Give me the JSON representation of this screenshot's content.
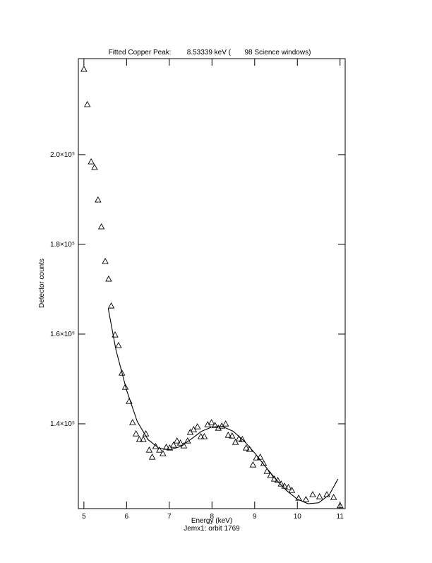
{
  "chart_data": {
    "type": "scatter",
    "title": "Fitted Copper Peak:        8.53339 keV (       98 Science windows)",
    "xlabel": "Energy (keV)",
    "subtitle": "Jemx1: orbit 1769",
    "ylabel": "Detector counts",
    "xlim": [
      4.87,
      11.12
    ],
    "ylim": [
      121100,
      221400
    ],
    "xticks": [
      5,
      6,
      7,
      8,
      9,
      10,
      11
    ],
    "yticks": [
      {
        "value": 140000,
        "label": "1.4×10⁵"
      },
      {
        "value": 160000,
        "label": "1.6×10⁵"
      },
      {
        "value": 180000,
        "label": "1.8×10⁵"
      },
      {
        "value": 200000,
        "label": "2.0×10⁵"
      }
    ],
    "series": [
      {
        "type": "scatter",
        "marker": "triangle",
        "color": "#000000",
        "x": [
          5.0,
          5.08,
          5.17,
          5.25,
          5.33,
          5.41,
          5.5,
          5.58,
          5.64,
          5.73,
          5.81,
          5.89,
          5.97,
          6.06,
          6.14,
          6.22,
          6.3,
          6.39,
          6.45,
          6.53,
          6.6,
          6.68,
          6.77,
          6.85,
          6.93,
          7.01,
          7.1,
          7.18,
          7.26,
          7.34,
          7.43,
          7.49,
          7.57,
          7.66,
          7.74,
          7.82,
          7.9,
          7.99,
          8.07,
          8.15,
          8.23,
          8.32,
          8.38,
          8.47,
          8.55,
          8.63,
          8.71,
          8.8,
          8.88,
          8.96,
          9.04,
          9.13,
          9.21,
          9.29,
          9.37,
          9.46,
          9.54,
          9.62,
          9.7,
          9.79,
          9.87,
          10.03,
          10.2,
          10.36,
          10.52,
          10.69,
          10.85,
          11.0
        ],
        "values": [
          219060,
          211190,
          198430,
          197170,
          189930,
          183940,
          176230,
          172290,
          166300,
          159840,
          157480,
          151340,
          148190,
          145040,
          140310,
          137800,
          136540,
          136540,
          137800,
          134170,
          132600,
          134960,
          134170,
          133390,
          134800,
          134640,
          135280,
          136220,
          135750,
          135120,
          136220,
          138110,
          138740,
          139370,
          137170,
          137170,
          139840,
          140310,
          139690,
          139060,
          139530,
          140000,
          137480,
          137320,
          135900,
          136690,
          136540,
          134640,
          134330,
          130870,
          132440,
          132600,
          131180,
          129450,
          128500,
          127720,
          127400,
          126610,
          126140,
          125830,
          125200,
          123460,
          123150,
          124250,
          123780,
          124250,
          123620,
          121800
        ]
      },
      {
        "type": "line",
        "color": "#000000",
        "x": [
          5.57,
          5.75,
          6.0,
          6.25,
          6.5,
          6.75,
          7.0,
          7.25,
          7.5,
          7.75,
          8.0,
          8.25,
          8.5,
          8.75,
          9.0,
          9.25,
          9.5,
          9.75,
          10.0,
          10.25,
          10.5,
          10.75,
          10.95
        ],
        "values": [
          165700,
          156500,
          147500,
          140500,
          136500,
          134600,
          134200,
          134900,
          136500,
          138300,
          139300,
          139400,
          138300,
          136200,
          133500,
          130500,
          127600,
          125100,
          123200,
          122200,
          122400,
          124200,
          127700
        ]
      }
    ]
  }
}
